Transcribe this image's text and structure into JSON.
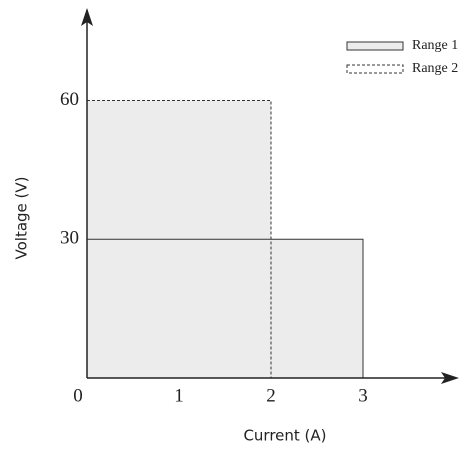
{
  "chart_data": {
    "type": "range",
    "x_label": "Current (A)",
    "y_label": "Voltage (V)",
    "xlim": [
      0,
      4
    ],
    "xticks": [
      0,
      1,
      2,
      3
    ],
    "ylim": [
      0,
      80
    ],
    "yticks": [
      30,
      60
    ],
    "fill": "#ececec",
    "stroke": "#333333",
    "series": [
      {
        "name": "Range 1",
        "current": 3,
        "voltage": 30,
        "dashed": false
      },
      {
        "name": "Range 2",
        "current": 2,
        "voltage": 60,
        "dashed": true
      }
    ]
  }
}
